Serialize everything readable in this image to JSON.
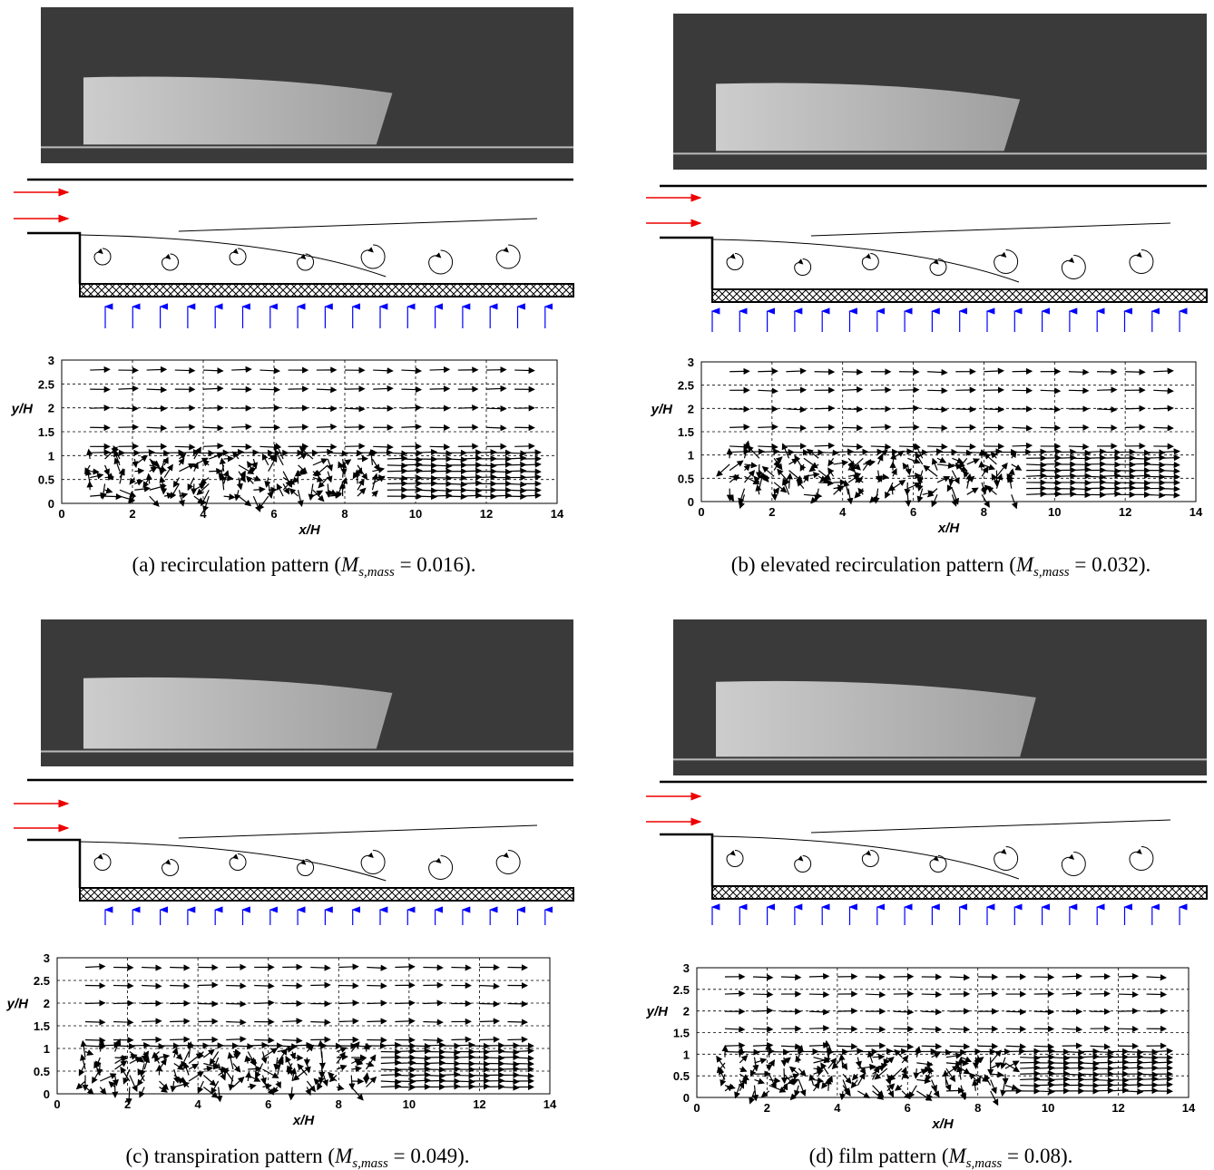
{
  "panels": [
    {
      "caption": {
        "prefix": "(a) recirculation pattern (",
        "symbol": "M",
        "subscript": "s,mass",
        "suffix": " = 0.016)."
      },
      "plot": {
        "type": "quiver",
        "xlabel": "x/H",
        "ylabel": "y/H",
        "xlim": [
          0,
          14
        ],
        "ylim": [
          0,
          3
        ],
        "xticks": [
          0,
          2,
          4,
          6,
          8,
          10,
          12,
          14
        ],
        "yticks": [
          0,
          0.5,
          1,
          1.5,
          2,
          2.5,
          3
        ],
        "grid": true
      }
    },
    {
      "caption": {
        "prefix": "(b) elevated recirculation pattern (",
        "symbol": "M",
        "subscript": "s,mass",
        "suffix": " = 0.032)."
      },
      "plot": {
        "type": "quiver",
        "xlabel": "x/H",
        "ylabel": "y/H",
        "xlim": [
          0,
          14
        ],
        "ylim": [
          0,
          3
        ],
        "xticks": [
          0,
          2,
          4,
          6,
          8,
          10,
          12,
          14
        ],
        "yticks": [
          0,
          0.5,
          1,
          1.5,
          2,
          2.5,
          3
        ],
        "grid": true
      }
    },
    {
      "caption": {
        "prefix": "(c) transpiration pattern (",
        "symbol": "M",
        "subscript": "s,mass",
        "suffix": " = 0.049)."
      },
      "plot": {
        "type": "quiver",
        "xlabel": "x/H",
        "ylabel": "y/H",
        "xlim": [
          0,
          14
        ],
        "ylim": [
          0,
          3
        ],
        "xticks": [
          0,
          2,
          4,
          6,
          8,
          10,
          12,
          14
        ],
        "yticks": [
          0,
          0.5,
          1,
          1.5,
          2,
          2.5,
          3
        ],
        "grid": true
      }
    },
    {
      "caption": {
        "prefix": "(d) film pattern (",
        "symbol": "M",
        "subscript": "s,mass",
        "suffix": " = 0.08)."
      },
      "plot": {
        "type": "quiver",
        "xlabel": "x/H",
        "ylabel": "y/H",
        "xlim": [
          0,
          14
        ],
        "ylim": [
          0,
          3
        ],
        "xticks": [
          0,
          2,
          4,
          6,
          8,
          10,
          12,
          14
        ],
        "yticks": [
          0,
          0.5,
          1,
          1.5,
          2,
          2.5,
          3
        ],
        "grid": true
      }
    }
  ]
}
